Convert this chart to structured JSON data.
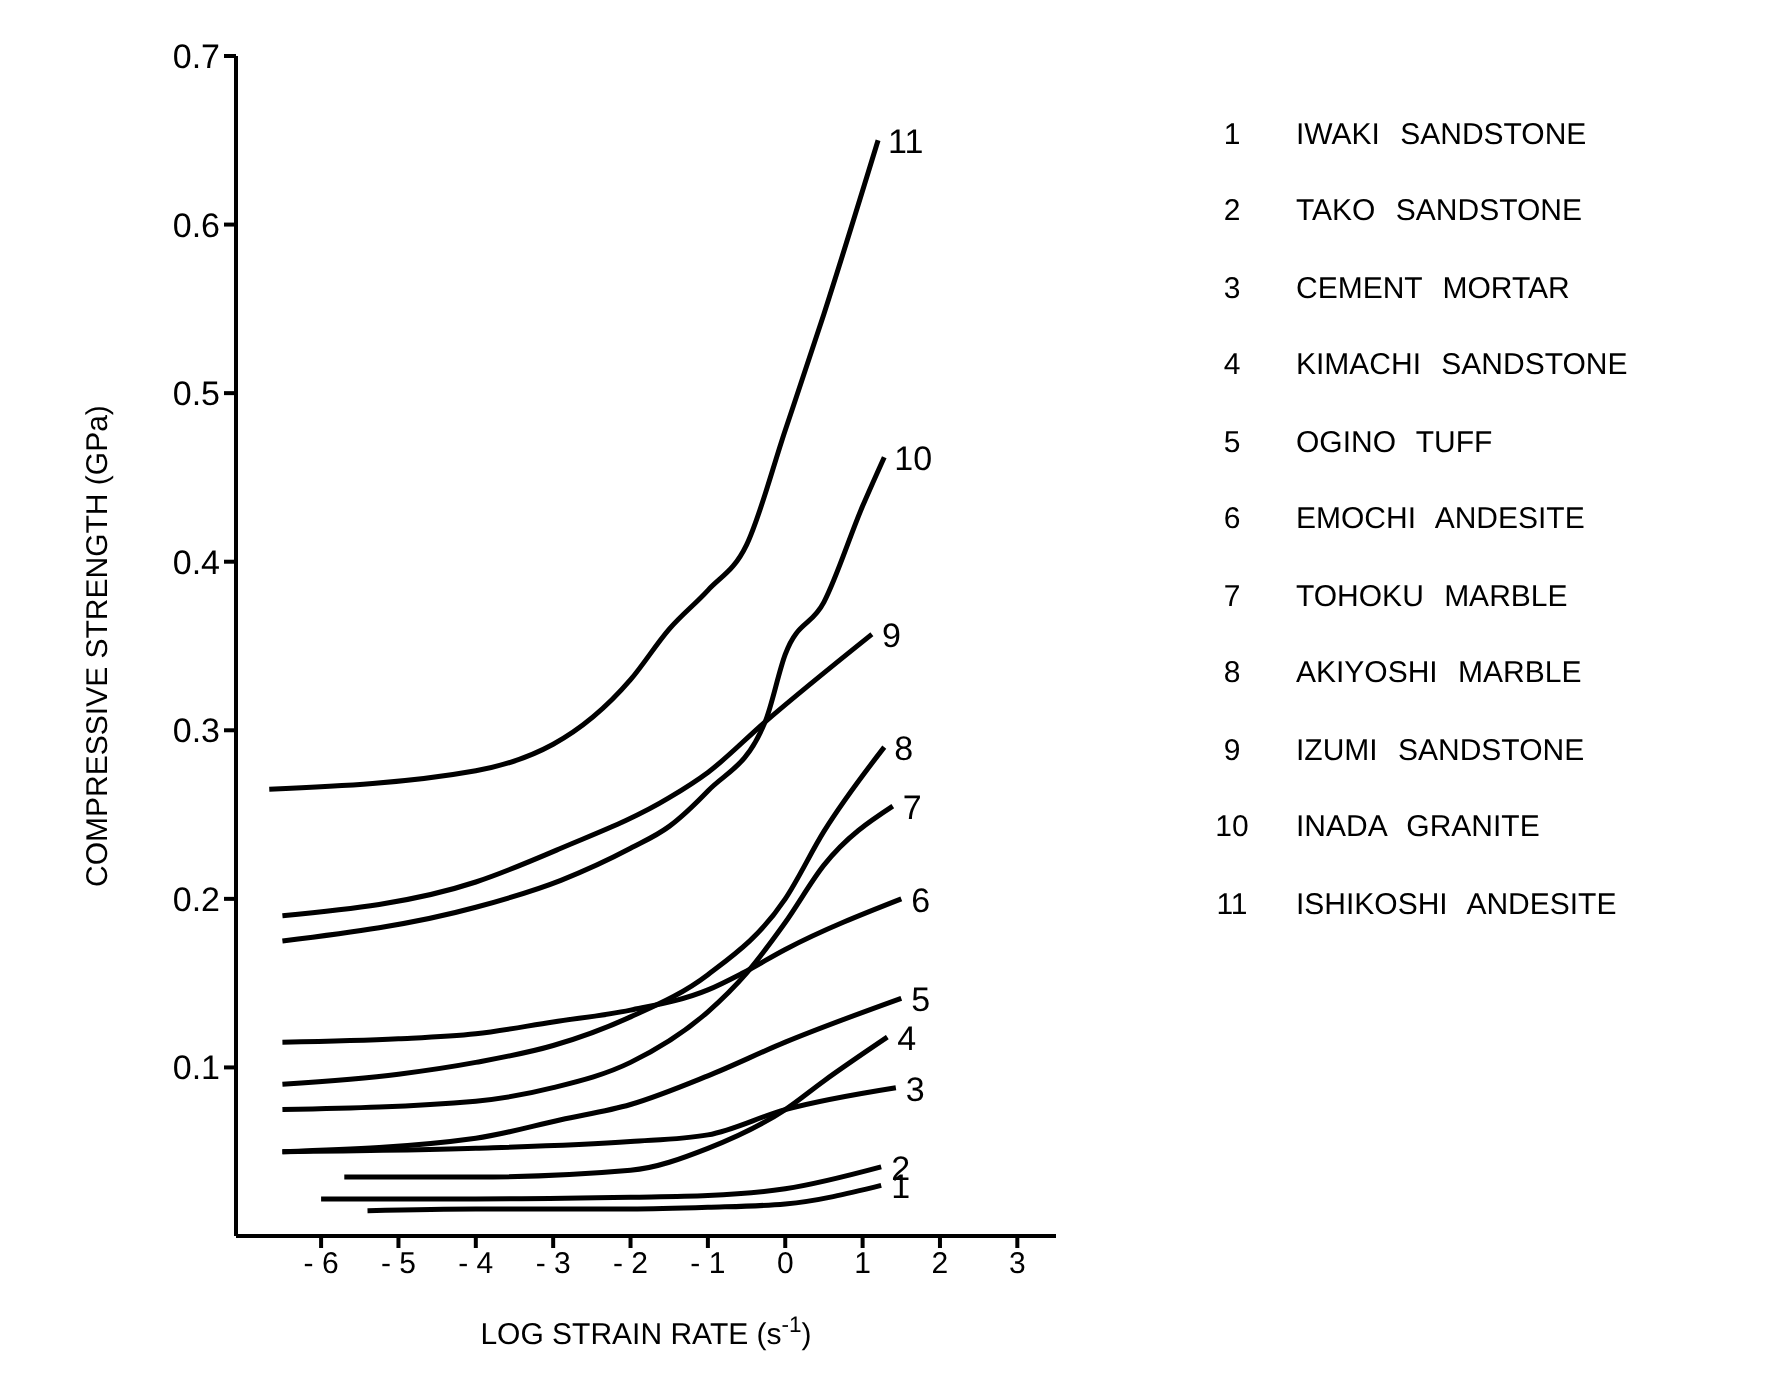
{
  "chart_data": {
    "type": "line",
    "xlabel": "LOG STRAIN RATE (s$^{-1}$)",
    "ylabel": "COMPRESSIVE STRENGTH (GPa)",
    "xlim": [
      -7.1,
      3.5
    ],
    "xticks": [
      -6,
      -5,
      -4,
      -3,
      -2,
      -1,
      0,
      1,
      2,
      3
    ],
    "ylim": [
      0,
      0.7
    ],
    "yticks": [
      0.1,
      0.2,
      0.3,
      0.4,
      0.5,
      0.6,
      0.7
    ],
    "grid": false,
    "marker": "none",
    "line_style": "solid",
    "series": [
      {
        "name": "1",
        "color": "#000000",
        "x": [
          -5.4,
          -4,
          -2,
          -1,
          0,
          1.24
        ],
        "values": [
          0.015,
          0.016,
          0.016,
          0.017,
          0.019,
          0.03
        ]
      },
      {
        "name": "2",
        "color": "#000000",
        "x": [
          -6,
          -4,
          -2,
          -1,
          0,
          1.24
        ],
        "values": [
          0.022,
          0.022,
          0.023,
          0.024,
          0.028,
          0.041
        ]
      },
      {
        "name": "3",
        "color": "#000000",
        "x": [
          -6.5,
          -4,
          -2,
          -1,
          0,
          1.43
        ],
        "values": [
          0.05,
          0.052,
          0.056,
          0.06,
          0.075,
          0.088
        ]
      },
      {
        "name": "4",
        "color": "#000000",
        "x": [
          -5.7,
          -4,
          -2,
          -1,
          0,
          0.5,
          1.32
        ],
        "values": [
          0.035,
          0.035,
          0.039,
          0.052,
          0.075,
          0.092,
          0.118
        ]
      },
      {
        "name": "5",
        "color": "#000000",
        "x": [
          -6.5,
          -4,
          -2.9,
          -2,
          -1,
          0,
          1.5
        ],
        "values": [
          0.05,
          0.058,
          0.069,
          0.078,
          0.095,
          0.115,
          0.141
        ]
      },
      {
        "name": "6",
        "color": "#000000",
        "x": [
          -6.5,
          -5,
          -4,
          -3,
          -2,
          -1,
          -0.55,
          0,
          1.5
        ],
        "values": [
          0.115,
          0.117,
          0.12,
          0.127,
          0.134,
          0.146,
          0.156,
          0.17,
          0.2
        ]
      },
      {
        "name": "7",
        "color": "#000000",
        "x": [
          -6.5,
          -4,
          -3,
          -2,
          -1,
          -0.5,
          0,
          0.5,
          1.39
        ],
        "values": [
          0.075,
          0.08,
          0.088,
          0.103,
          0.133,
          0.156,
          0.186,
          0.22,
          0.255
        ]
      },
      {
        "name": "8",
        "color": "#000000",
        "x": [
          -6.5,
          -5,
          -4,
          -3,
          -2,
          -1,
          0,
          0.5,
          1.28
        ],
        "values": [
          0.09,
          0.096,
          0.103,
          0.113,
          0.13,
          0.155,
          0.2,
          0.24,
          0.29
        ]
      },
      {
        "name": "9",
        "color": "#000000",
        "x": [
          -6.5,
          -4,
          -2.9,
          -1.5,
          -1,
          -0.26,
          1.12
        ],
        "values": [
          0.19,
          0.21,
          0.23,
          0.26,
          0.275,
          0.305,
          0.357
        ]
      },
      {
        "name": "10",
        "color": "#000000",
        "x": [
          -6.5,
          -4,
          -2.9,
          -2,
          -1.5,
          -1,
          -0.26,
          0,
          0.5,
          1,
          1.28
        ],
        "values": [
          0.175,
          0.195,
          0.211,
          0.23,
          0.243,
          0.264,
          0.305,
          0.345,
          0.376,
          0.433,
          0.462
        ]
      },
      {
        "name": "11",
        "color": "#000000",
        "x": [
          -6.67,
          -4,
          -2,
          -1.5,
          -1,
          -0.5,
          0,
          0.5,
          1.2
        ],
        "values": [
          0.265,
          0.276,
          0.33,
          0.36,
          0.383,
          0.41,
          0.478,
          0.547,
          0.65
        ]
      }
    ],
    "annotations": [
      "IWAKI SANDSTONE",
      "TAKO SANDSTONE",
      "CEMENT MORTAR",
      "KIMACHI SANDSTONE",
      "OGINO TUFF",
      "EMOCHI ANDESITE",
      "TOHOKU MARBLE",
      "AKIYOSHI MARBLE",
      "IZUMI SANDSTONE",
      "INADA GRANITE",
      "ISHIKOSHI ANDESITE"
    ]
  }
}
